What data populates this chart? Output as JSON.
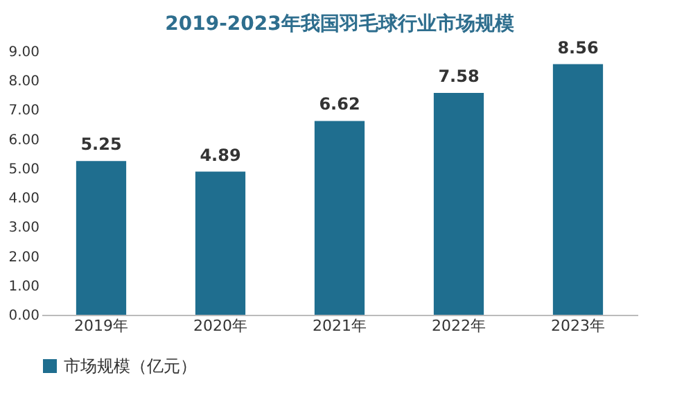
{
  "chart_data": {
    "type": "bar",
    "title": "2019-2023年我国羽毛球行业市场规模",
    "categories": [
      "2019年",
      "2020年",
      "2021年",
      "2022年",
      "2023年"
    ],
    "series": [
      {
        "name": "市场规模（亿元）",
        "color": "#1f6e8f",
        "values": [
          5.25,
          4.89,
          6.62,
          7.58,
          8.56
        ]
      }
    ],
    "ylim": [
      0,
      9
    ],
    "yticks": [
      {
        "value": 0,
        "label": "0.00"
      },
      {
        "value": 1,
        "label": "1.00"
      },
      {
        "value": 2,
        "label": "2.00"
      },
      {
        "value": 3,
        "label": "3.00"
      },
      {
        "value": 4,
        "label": "4.00"
      },
      {
        "value": 5,
        "label": "5.00"
      },
      {
        "value": 6,
        "label": "6.00"
      },
      {
        "value": 7,
        "label": "7.00"
      },
      {
        "value": 8,
        "label": "8.00"
      },
      {
        "value": 9,
        "label": "9.00"
      }
    ],
    "data_labels": true,
    "legend": "bottom",
    "grid": false
  }
}
